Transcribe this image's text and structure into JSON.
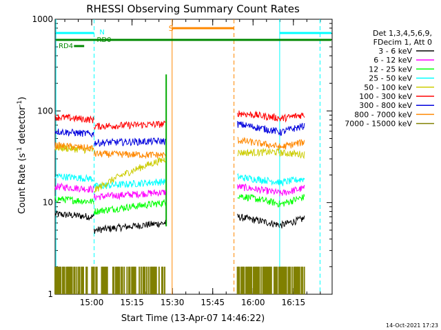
{
  "chart_data": {
    "type": "line",
    "title": "RHESSI Observing Summary Count Rates",
    "xlabel": "Start Time (13-Apr-07 14:46:22)",
    "ylabel_parts": {
      "pre": "Count Rate (s",
      "sup1": "-1",
      "mid": " detector",
      "sup2": "-1",
      "post": ")"
    },
    "y_scale": "log",
    "ylim": [
      1,
      1000
    ],
    "xlim_minutes": [
      0,
      103
    ],
    "y_ticks": [
      {
        "v": 1,
        "label": "1"
      },
      {
        "v": 10,
        "label": "10"
      },
      {
        "v": 100,
        "label": "100"
      },
      {
        "v": 1000,
        "label": "1000"
      }
    ],
    "x_ticks": [
      {
        "m": 13.6,
        "label": "15:00"
      },
      {
        "m": 28.6,
        "label": "15:15"
      },
      {
        "m": 43.6,
        "label": "15:30"
      },
      {
        "m": 58.6,
        "label": "15:45"
      },
      {
        "m": 73.6,
        "label": "16:00"
      },
      {
        "m": 88.6,
        "label": "16:15"
      }
    ],
    "legend": {
      "header": [
        "Det 1,3,4,5,6,9,",
        "FDecim 1, Att 0"
      ],
      "position": "right"
    },
    "series": [
      {
        "name": "3 - 6 keV",
        "color": "#000000",
        "base": [
          7.5,
          5.0,
          6.0,
          7.0,
          5.6
        ]
      },
      {
        "name": "6 - 12 keV",
        "color": "#ff00ff",
        "base": [
          15.0,
          11.5,
          13.0,
          15.0,
          12.5
        ]
      },
      {
        "name": "12 - 25 keV",
        "color": "#00ff00",
        "base": [
          11.0,
          8.0,
          10.0,
          12.0,
          9.5
        ]
      },
      {
        "name": "25 - 50 keV",
        "color": "#00ffff",
        "base": [
          19.5,
          15.0,
          17.0,
          19.0,
          16.5
        ]
      },
      {
        "name": "50 - 100 keV",
        "color": "#cccc00",
        "base": [
          40.0,
          13.5,
          30.0,
          35.0,
          35.0
        ]
      },
      {
        "name": "100 - 300 keV",
        "color": "#ff0000",
        "base": [
          86.0,
          68.0,
          72.0,
          95.0,
          82.0
        ]
      },
      {
        "name": "300 - 800 keV",
        "color": "#0000dd",
        "base": [
          60.0,
          45.0,
          47.0,
          72.0,
          58.0
        ]
      },
      {
        "name": "800 - 7000 keV",
        "color": "#ff8800",
        "base": [
          42.0,
          34.0,
          33.0,
          48.0,
          40.0
        ]
      },
      {
        "name": "7000 - 15000 keV",
        "color": "#808000",
        "base": [
          2.0,
          2.0,
          2.0,
          0,
          2.0
        ]
      }
    ],
    "data_segments_minutes": [
      [
        0,
        14.5
      ],
      [
        14.5,
        41.2
      ],
      [
        67.8,
        92.8
      ]
    ],
    "annotations": {
      "s_label": "S",
      "n_label": "N",
      "rd0_label": "RD0",
      "rd4_label": "RD4"
    },
    "colors": {
      "axis": "#000000",
      "green_bar": "#008800",
      "cyan": "#00ffff",
      "orange": "#ff8800"
    }
  },
  "footer": {
    "date": "14-Oct-2021 17:23"
  }
}
